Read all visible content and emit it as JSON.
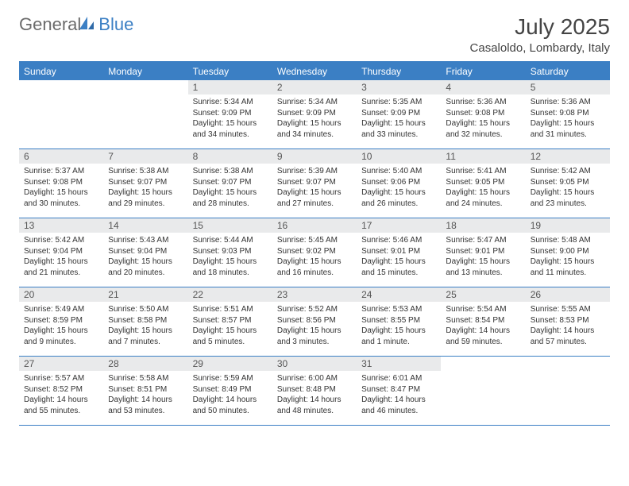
{
  "logo": {
    "text1": "General",
    "text2": "Blue"
  },
  "title": "July 2025",
  "location": "Casaloldo, Lombardy, Italy",
  "colors": {
    "accent": "#3b7fc4",
    "header_bg": "#3b7fc4",
    "daynum_bg": "#e9eaeb",
    "text": "#333333"
  },
  "day_names": [
    "Sunday",
    "Monday",
    "Tuesday",
    "Wednesday",
    "Thursday",
    "Friday",
    "Saturday"
  ],
  "weeks": [
    [
      null,
      null,
      {
        "n": "1",
        "sr": "5:34 AM",
        "ss": "9:09 PM",
        "dl": "15 hours and 34 minutes."
      },
      {
        "n": "2",
        "sr": "5:34 AM",
        "ss": "9:09 PM",
        "dl": "15 hours and 34 minutes."
      },
      {
        "n": "3",
        "sr": "5:35 AM",
        "ss": "9:09 PM",
        "dl": "15 hours and 33 minutes."
      },
      {
        "n": "4",
        "sr": "5:36 AM",
        "ss": "9:08 PM",
        "dl": "15 hours and 32 minutes."
      },
      {
        "n": "5",
        "sr": "5:36 AM",
        "ss": "9:08 PM",
        "dl": "15 hours and 31 minutes."
      }
    ],
    [
      {
        "n": "6",
        "sr": "5:37 AM",
        "ss": "9:08 PM",
        "dl": "15 hours and 30 minutes."
      },
      {
        "n": "7",
        "sr": "5:38 AM",
        "ss": "9:07 PM",
        "dl": "15 hours and 29 minutes."
      },
      {
        "n": "8",
        "sr": "5:38 AM",
        "ss": "9:07 PM",
        "dl": "15 hours and 28 minutes."
      },
      {
        "n": "9",
        "sr": "5:39 AM",
        "ss": "9:07 PM",
        "dl": "15 hours and 27 minutes."
      },
      {
        "n": "10",
        "sr": "5:40 AM",
        "ss": "9:06 PM",
        "dl": "15 hours and 26 minutes."
      },
      {
        "n": "11",
        "sr": "5:41 AM",
        "ss": "9:05 PM",
        "dl": "15 hours and 24 minutes."
      },
      {
        "n": "12",
        "sr": "5:42 AM",
        "ss": "9:05 PM",
        "dl": "15 hours and 23 minutes."
      }
    ],
    [
      {
        "n": "13",
        "sr": "5:42 AM",
        "ss": "9:04 PM",
        "dl": "15 hours and 21 minutes."
      },
      {
        "n": "14",
        "sr": "5:43 AM",
        "ss": "9:04 PM",
        "dl": "15 hours and 20 minutes."
      },
      {
        "n": "15",
        "sr": "5:44 AM",
        "ss": "9:03 PM",
        "dl": "15 hours and 18 minutes."
      },
      {
        "n": "16",
        "sr": "5:45 AM",
        "ss": "9:02 PM",
        "dl": "15 hours and 16 minutes."
      },
      {
        "n": "17",
        "sr": "5:46 AM",
        "ss": "9:01 PM",
        "dl": "15 hours and 15 minutes."
      },
      {
        "n": "18",
        "sr": "5:47 AM",
        "ss": "9:01 PM",
        "dl": "15 hours and 13 minutes."
      },
      {
        "n": "19",
        "sr": "5:48 AM",
        "ss": "9:00 PM",
        "dl": "15 hours and 11 minutes."
      }
    ],
    [
      {
        "n": "20",
        "sr": "5:49 AM",
        "ss": "8:59 PM",
        "dl": "15 hours and 9 minutes."
      },
      {
        "n": "21",
        "sr": "5:50 AM",
        "ss": "8:58 PM",
        "dl": "15 hours and 7 minutes."
      },
      {
        "n": "22",
        "sr": "5:51 AM",
        "ss": "8:57 PM",
        "dl": "15 hours and 5 minutes."
      },
      {
        "n": "23",
        "sr": "5:52 AM",
        "ss": "8:56 PM",
        "dl": "15 hours and 3 minutes."
      },
      {
        "n": "24",
        "sr": "5:53 AM",
        "ss": "8:55 PM",
        "dl": "15 hours and 1 minute."
      },
      {
        "n": "25",
        "sr": "5:54 AM",
        "ss": "8:54 PM",
        "dl": "14 hours and 59 minutes."
      },
      {
        "n": "26",
        "sr": "5:55 AM",
        "ss": "8:53 PM",
        "dl": "14 hours and 57 minutes."
      }
    ],
    [
      {
        "n": "27",
        "sr": "5:57 AM",
        "ss": "8:52 PM",
        "dl": "14 hours and 55 minutes."
      },
      {
        "n": "28",
        "sr": "5:58 AM",
        "ss": "8:51 PM",
        "dl": "14 hours and 53 minutes."
      },
      {
        "n": "29",
        "sr": "5:59 AM",
        "ss": "8:49 PM",
        "dl": "14 hours and 50 minutes."
      },
      {
        "n": "30",
        "sr": "6:00 AM",
        "ss": "8:48 PM",
        "dl": "14 hours and 48 minutes."
      },
      {
        "n": "31",
        "sr": "6:01 AM",
        "ss": "8:47 PM",
        "dl": "14 hours and 46 minutes."
      },
      null,
      null
    ]
  ],
  "labels": {
    "sunrise": "Sunrise:",
    "sunset": "Sunset:",
    "daylight": "Daylight:"
  }
}
